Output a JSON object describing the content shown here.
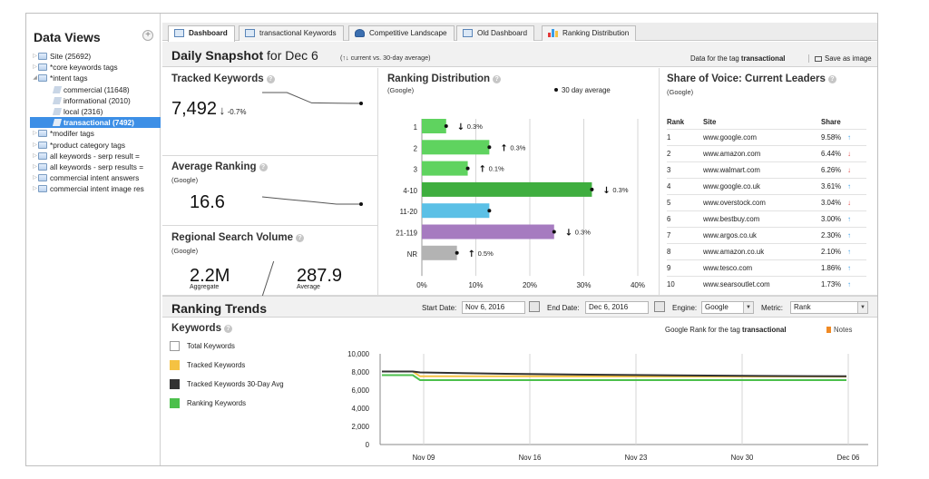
{
  "sidebar": {
    "title": "Data Views",
    "add_label": "+",
    "items": [
      {
        "label": "Site (25692)",
        "level": 0,
        "type": "folder",
        "arrow": "▷"
      },
      {
        "label": "*core keywords tags",
        "level": 0,
        "type": "folder",
        "arrow": "▷"
      },
      {
        "label": "*intent tags",
        "level": 0,
        "type": "folder",
        "arrow": "◢"
      },
      {
        "label": "commercial (11648)",
        "level": 1,
        "type": "leaf",
        "arrow": ""
      },
      {
        "label": "informational (2010)",
        "level": 1,
        "type": "leaf",
        "arrow": ""
      },
      {
        "label": "local (2316)",
        "level": 1,
        "type": "leaf",
        "arrow": ""
      },
      {
        "label": "transactional (7492)",
        "level": 1,
        "type": "leaf",
        "arrow": "",
        "selected": true
      },
      {
        "label": "*modifer tags",
        "level": 0,
        "type": "folder",
        "arrow": "▷"
      },
      {
        "label": "*product category tags",
        "level": 0,
        "type": "folder",
        "arrow": "▷"
      },
      {
        "label": "all keywords - serp result =",
        "level": 0,
        "type": "folder",
        "arrow": "▷"
      },
      {
        "label": "all keywords - serp results =",
        "level": 0,
        "type": "folder",
        "arrow": "▷"
      },
      {
        "label": "commercial intent answers",
        "level": 0,
        "type": "folder",
        "arrow": "▷"
      },
      {
        "label": "commercial intent image res",
        "level": 0,
        "type": "folder",
        "arrow": "▷"
      }
    ]
  },
  "tabs": [
    {
      "label": "Dashboard",
      "icon": "dashboard-icon",
      "active": true
    },
    {
      "label": "transactional Keywords",
      "icon": "keywords-icon",
      "active": false
    },
    {
      "label": "Competitive Landscape",
      "icon": "person-icon",
      "active": false
    },
    {
      "label": "Old Dashboard",
      "icon": "dashboard-icon",
      "active": false
    },
    {
      "label": "Ranking Distribution",
      "icon": "bar-chart-icon",
      "active": false
    }
  ],
  "snapshot": {
    "title": "Daily Snapshot",
    "date_text": "for Dec 6",
    "subtitle": "(↑↓ current vs. 30-day average)",
    "tag_prefix": "Data for the tag",
    "tag_name": "transactional",
    "save_label": "Save as image"
  },
  "tracked": {
    "title": "Tracked Keywords",
    "value": "7,492",
    "arrow": "↓",
    "change": "-0.7%"
  },
  "avg_rank": {
    "title": "Average Ranking",
    "sub": "(Google)",
    "value": "16.6"
  },
  "regional": {
    "title": "Regional Search Volume",
    "sub": "(Google)",
    "aggregate_value": "2.2M",
    "aggregate_label": "Aggregate",
    "average_value": "287.9",
    "average_label": "Average"
  },
  "ranking_dist": {
    "title": "Ranking Distribution",
    "sub": "(Google)",
    "legend": "30 day average"
  },
  "sov": {
    "title": "Share of Voice: Current Leaders",
    "sub": "(Google)",
    "headers": [
      "Rank",
      "Site",
      "Share"
    ],
    "rows": [
      {
        "rank": "1",
        "site": "www.google.com",
        "share": "9.58%",
        "dir": "up"
      },
      {
        "rank": "2",
        "site": "www.amazon.com",
        "share": "6.44%",
        "dir": "down"
      },
      {
        "rank": "3",
        "site": "www.walmart.com",
        "share": "6.26%",
        "dir": "down"
      },
      {
        "rank": "4",
        "site": "www.google.co.uk",
        "share": "3.61%",
        "dir": "up"
      },
      {
        "rank": "5",
        "site": "www.overstock.com",
        "share": "3.04%",
        "dir": "down"
      },
      {
        "rank": "6",
        "site": "www.bestbuy.com",
        "share": "3.00%",
        "dir": "up"
      },
      {
        "rank": "7",
        "site": "www.argos.co.uk",
        "share": "2.30%",
        "dir": "up"
      },
      {
        "rank": "8",
        "site": "www.amazon.co.uk",
        "share": "2.10%",
        "dir": "up"
      },
      {
        "rank": "9",
        "site": "www.tesco.com",
        "share": "1.86%",
        "dir": "up"
      },
      {
        "rank": "10",
        "site": "www.searsoutlet.com",
        "share": "1.73%",
        "dir": "up"
      }
    ]
  },
  "trends": {
    "title": "Ranking Trends",
    "start_label": "Start Date:",
    "start_value": "Nov 6, 2016",
    "end_label": "End Date:",
    "end_value": "Dec 6, 2016",
    "engine_label": "Engine:",
    "engine_value": "Google",
    "metric_label": "Metric:",
    "metric_value": "Rank",
    "keywords_title": "Keywords",
    "rank_note_prefix": "Google Rank for the tag",
    "rank_note_tag": "transactional",
    "notes_label": "Notes",
    "legend": [
      {
        "label": "Total Keywords",
        "color": "#ffffff"
      },
      {
        "label": "Tracked Keywords",
        "color": "#f5c242"
      },
      {
        "label": "Tracked Keywords 30-Day Avg",
        "color": "#333333"
      },
      {
        "label": "Ranking Keywords",
        "color": "#4cc04c"
      }
    ]
  },
  "chart_data": [
    {
      "type": "bar",
      "orientation": "horizontal",
      "title": "Ranking Distribution",
      "subtitle": "(Google)",
      "categories": [
        "1",
        "2",
        "3",
        "4-10",
        "11-20",
        "21-119",
        "NR"
      ],
      "values": [
        4.5,
        12.5,
        8.5,
        31.5,
        12.5,
        24.5,
        6.5
      ],
      "averages": [
        4.5,
        12.5,
        8.5,
        31.5,
        12.5,
        24.5,
        6.5
      ],
      "colors": [
        "#5fd35f",
        "#5fd35f",
        "#5fd35f",
        "#3fae3f",
        "#5bc0e6",
        "#a67bc0",
        "#b3b3b3"
      ],
      "changes": [
        {
          "arrow": "↓",
          "text": "0.3%"
        },
        {
          "arrow": "↑",
          "text": "0.3%"
        },
        {
          "arrow": "↑",
          "text": "0.1%"
        },
        {
          "arrow": "↓",
          "text": "0.3%"
        },
        {
          "arrow": "",
          "text": ""
        },
        {
          "arrow": "↓",
          "text": "0.3%"
        },
        {
          "arrow": "↑",
          "text": "0.5%"
        }
      ],
      "xlim": [
        0,
        40
      ],
      "xticks": [
        "0%",
        "10%",
        "20%",
        "30%",
        "40%"
      ],
      "legend": "30 day average"
    },
    {
      "type": "line",
      "title": "Keywords",
      "x_labels": [
        "Nov 09",
        "Nov 16",
        "Nov 23",
        "Nov 30",
        "Dec 06"
      ],
      "yticks": [
        "0",
        "2,000",
        "4,000",
        "6,000",
        "8,000",
        "10,000"
      ],
      "ylim": [
        0,
        10000
      ],
      "series": [
        {
          "name": "Tracked Keywords",
          "color": "#f5c242",
          "values": [
            8050,
            8050,
            8050,
            7520,
            7520,
            7510,
            7500,
            7495,
            7492
          ]
        },
        {
          "name": "Tracked Keywords 30-Day Avg",
          "color": "#333333",
          "values": [
            8050,
            8050,
            8050,
            7950,
            7800,
            7700,
            7620,
            7560,
            7520
          ]
        },
        {
          "name": "Ranking Keywords",
          "color": "#4cc04c",
          "values": [
            7650,
            7650,
            7650,
            7100,
            7100,
            7100,
            7100,
            7100,
            7100
          ]
        }
      ]
    },
    {
      "type": "line",
      "title": "Tracked Keywords sparkline",
      "values": [
        8050,
        8050,
        7520,
        7500,
        7492
      ]
    },
    {
      "type": "line",
      "title": "Average Ranking sparkline",
      "values": [
        16.9,
        16.8,
        16.7,
        16.6,
        16.6
      ]
    }
  ]
}
